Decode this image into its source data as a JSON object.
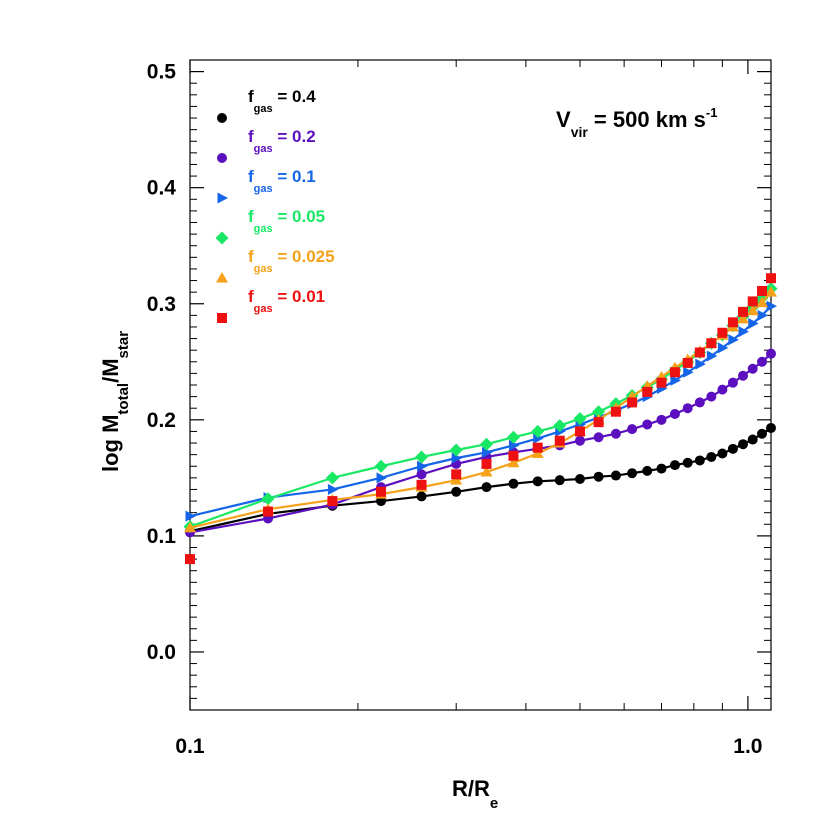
{
  "chart_data": {
    "type": "line",
    "xscale": "log",
    "xlim": [
      0.1,
      1.1
    ],
    "ylim": [
      -0.05,
      0.51
    ],
    "xticks": [
      0.1,
      1.0
    ],
    "xtick_labels": [
      "0.1",
      "1.0"
    ],
    "yticks": [
      0.0,
      0.1,
      0.2,
      0.3,
      0.4,
      0.5
    ],
    "ytick_labels": [
      "0.0",
      "0.1",
      "0.2",
      "0.3",
      "0.4",
      "0.5"
    ],
    "xlabel": {
      "base": "R/R",
      "sub": "e"
    },
    "ylabel": {
      "p1": "log M",
      "sub1": "total",
      "p2": "/M",
      "sub2": "star"
    },
    "annotation": {
      "pre": "V",
      "sub": "vir",
      "mid": " = 500 km s",
      "sup": "-1"
    },
    "legend_position": "top-left",
    "series": [
      {
        "name": "f_gas = 0.4",
        "label_base": "f",
        "label_sub": "gas",
        "label_value": " = 0.4",
        "color": "#000000",
        "marker": "circle",
        "x": [
          0.1,
          0.138,
          0.18,
          0.22,
          0.26,
          0.3,
          0.34,
          0.38,
          0.42,
          0.46,
          0.5,
          0.54,
          0.58,
          0.62,
          0.66,
          0.7,
          0.74,
          0.78,
          0.82,
          0.86,
          0.9,
          0.94,
          0.98,
          1.02,
          1.06,
          1.1
        ],
        "y": [
          0.104,
          0.119,
          0.126,
          0.13,
          0.134,
          0.138,
          0.142,
          0.145,
          0.147,
          0.148,
          0.149,
          0.151,
          0.152,
          0.154,
          0.156,
          0.158,
          0.161,
          0.163,
          0.165,
          0.168,
          0.171,
          0.175,
          0.179,
          0.183,
          0.188,
          0.193
        ]
      },
      {
        "name": "f_gas = 0.2",
        "label_base": "f",
        "label_sub": "gas",
        "label_value": " = 0.2",
        "color": "#5b0fbf",
        "marker": "circle",
        "x": [
          0.1,
          0.138,
          0.18,
          0.22,
          0.26,
          0.3,
          0.34,
          0.38,
          0.42,
          0.46,
          0.5,
          0.54,
          0.58,
          0.62,
          0.66,
          0.7,
          0.74,
          0.78,
          0.82,
          0.86,
          0.9,
          0.94,
          0.98,
          1.02,
          1.06,
          1.1
        ],
        "y": [
          0.103,
          0.115,
          0.127,
          0.142,
          0.153,
          0.162,
          0.168,
          0.172,
          0.175,
          0.178,
          0.182,
          0.185,
          0.188,
          0.192,
          0.196,
          0.2,
          0.205,
          0.21,
          0.215,
          0.22,
          0.226,
          0.232,
          0.238,
          0.244,
          0.25,
          0.257
        ]
      },
      {
        "name": "f_gas = 0.1",
        "label_base": "f",
        "label_sub": "gas",
        "label_value": " = 0.1",
        "color": "#1565e8",
        "marker": "triangle-right",
        "x": [
          0.1,
          0.138,
          0.18,
          0.22,
          0.26,
          0.3,
          0.34,
          0.38,
          0.42,
          0.46,
          0.5,
          0.54,
          0.58,
          0.62,
          0.66,
          0.7,
          0.74,
          0.78,
          0.82,
          0.86,
          0.9,
          0.94,
          0.98,
          1.02,
          1.06,
          1.1
        ],
        "y": [
          0.117,
          0.133,
          0.14,
          0.15,
          0.16,
          0.167,
          0.172,
          0.178,
          0.184,
          0.19,
          0.196,
          0.202,
          0.208,
          0.214,
          0.22,
          0.227,
          0.234,
          0.241,
          0.248,
          0.255,
          0.262,
          0.269,
          0.276,
          0.283,
          0.29,
          0.298
        ]
      },
      {
        "name": "f_gas = 0.05",
        "label_base": "f",
        "label_sub": "gas",
        "label_value": " = 0.05",
        "color": "#19e865",
        "marker": "diamond",
        "x": [
          0.1,
          0.138,
          0.18,
          0.22,
          0.26,
          0.3,
          0.34,
          0.38,
          0.42,
          0.46,
          0.5,
          0.54,
          0.58,
          0.62,
          0.66,
          0.7,
          0.74,
          0.78,
          0.82,
          0.86,
          0.9,
          0.94,
          0.98,
          1.02,
          1.06,
          1.1
        ],
        "y": [
          0.108,
          0.132,
          0.15,
          0.16,
          0.168,
          0.174,
          0.179,
          0.185,
          0.19,
          0.195,
          0.201,
          0.207,
          0.214,
          0.221,
          0.228,
          0.235,
          0.243,
          0.25,
          0.258,
          0.266,
          0.273,
          0.281,
          0.289,
          0.297,
          0.305,
          0.313
        ]
      },
      {
        "name": "f_gas = 0.025",
        "label_base": "f",
        "label_sub": "gas",
        "label_value": " = 0.025",
        "color": "#f5a21a",
        "marker": "triangle-up",
        "x": [
          0.1,
          0.138,
          0.18,
          0.22,
          0.26,
          0.3,
          0.34,
          0.38,
          0.42,
          0.46,
          0.5,
          0.54,
          0.58,
          0.62,
          0.66,
          0.7,
          0.74,
          0.78,
          0.82,
          0.86,
          0.9,
          0.94,
          0.98,
          1.02,
          1.06,
          1.1
        ],
        "y": [
          0.107,
          0.123,
          0.131,
          0.136,
          0.142,
          0.148,
          0.155,
          0.163,
          0.171,
          0.18,
          0.19,
          0.2,
          0.21,
          0.22,
          0.229,
          0.237,
          0.245,
          0.252,
          0.259,
          0.266,
          0.273,
          0.28,
          0.287,
          0.294,
          0.301,
          0.31
        ]
      },
      {
        "name": "f_gas = 0.01",
        "label_base": "f",
        "label_sub": "gas",
        "label_value": " = 0.01",
        "color": "#ee1111",
        "marker": "square",
        "x": [
          0.1,
          0.138,
          0.18,
          0.22,
          0.26,
          0.3,
          0.34,
          0.38,
          0.42,
          0.46,
          0.5,
          0.54,
          0.58,
          0.62,
          0.66,
          0.7,
          0.74,
          0.78,
          0.82,
          0.86,
          0.9,
          0.94,
          0.98,
          1.02,
          1.06,
          1.1
        ],
        "y": [
          0.08,
          0.121,
          0.13,
          0.138,
          0.144,
          0.153,
          0.162,
          0.169,
          0.176,
          0.182,
          0.19,
          0.198,
          0.207,
          0.215,
          0.224,
          0.232,
          0.241,
          0.249,
          0.258,
          0.266,
          0.275,
          0.284,
          0.293,
          0.302,
          0.311,
          0.322
        ]
      }
    ]
  }
}
